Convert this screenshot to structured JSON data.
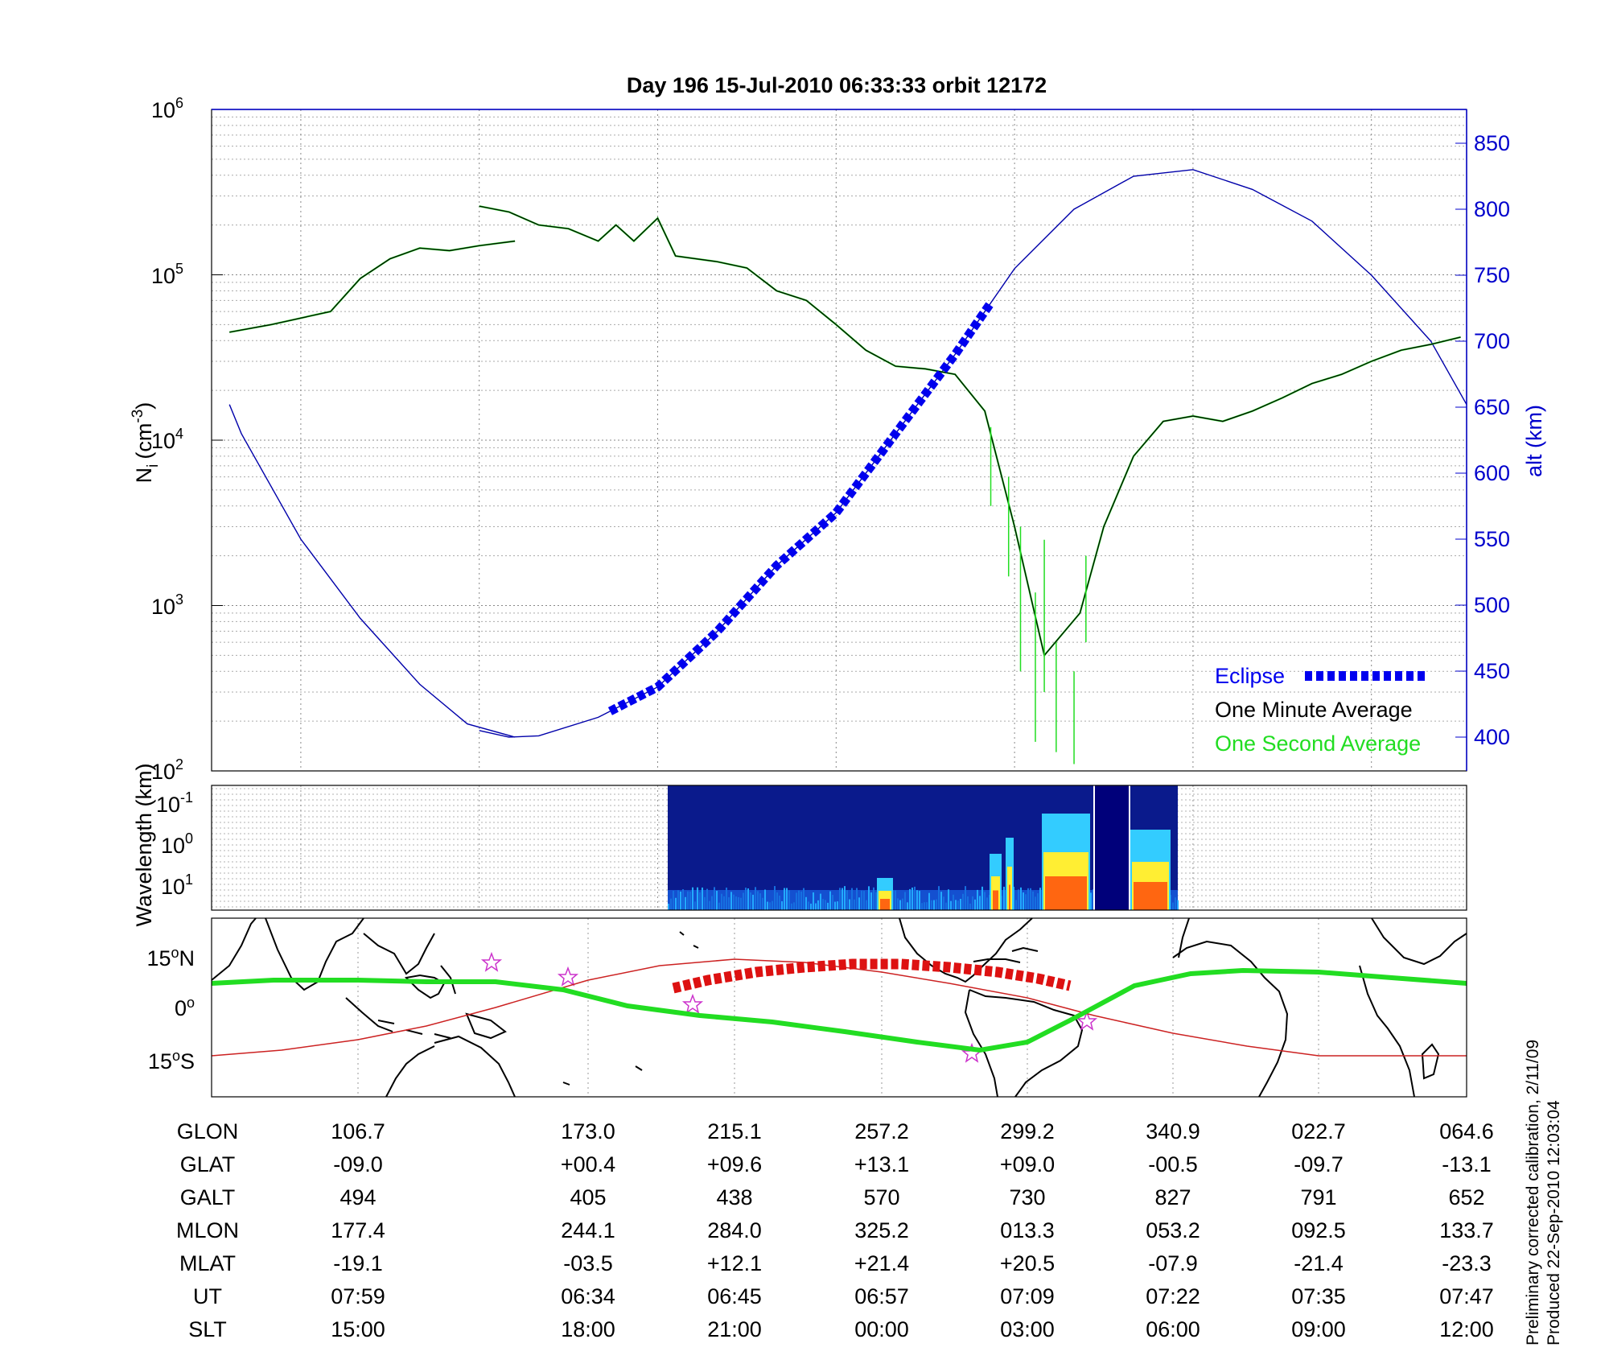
{
  "title": "Day 196  15-Jul-2010 06:33:33   orbit 12172",
  "top_panel": {
    "left_axis_label_main": "N",
    "left_axis_label_sub": "i",
    "left_axis_label_unit": "(cm",
    "left_axis_label_exp": "-3",
    "left_axis_label_close": ")",
    "right_axis_label": "alt (km)",
    "left_ticks": [
      {
        "base": "10",
        "exp": "6",
        "value": 1000000
      },
      {
        "base": "10",
        "exp": "5",
        "value": 100000
      },
      {
        "base": "10",
        "exp": "4",
        "value": 10000
      },
      {
        "base": "10",
        "exp": "3",
        "value": 1000
      },
      {
        "base": "10",
        "exp": "2",
        "value": 100
      }
    ],
    "right_ticks": [
      "850",
      "800",
      "750",
      "700",
      "650",
      "600",
      "550",
      "500",
      "450",
      "400"
    ],
    "legend": {
      "eclipse": "Eclipse",
      "one_minute": "One Minute Average",
      "one_second": "One Second Average"
    }
  },
  "mid_panel": {
    "axis_label": "Wavelength (km)",
    "ticks": [
      {
        "base": "10",
        "exp": "-1"
      },
      {
        "base": "10",
        "exp": "0"
      },
      {
        "base": "10",
        "exp": "1"
      }
    ]
  },
  "map_panel": {
    "ticks": [
      {
        "num": "15",
        "deg": "o",
        "hemi": "N"
      },
      {
        "num": "0",
        "deg": "o",
        "hemi": ""
      },
      {
        "num": "15",
        "deg": "o",
        "hemi": "S"
      }
    ]
  },
  "table": {
    "rows": [
      {
        "label": "GLON",
        "values": [
          "106.7",
          "173.0",
          "215.1",
          "257.2",
          "299.2",
          "340.9",
          "022.7",
          "064.6"
        ]
      },
      {
        "label": "GLAT",
        "values": [
          "-09.0",
          "+00.4",
          "+09.6",
          "+13.1",
          "+09.0",
          "-00.5",
          "-09.7",
          "-13.1"
        ]
      },
      {
        "label": "GALT",
        "values": [
          "494",
          "405",
          "438",
          "570",
          "730",
          "827",
          "791",
          "652"
        ]
      },
      {
        "label": "MLON",
        "values": [
          "177.4",
          "244.1",
          "284.0",
          "325.2",
          "013.3",
          "053.2",
          "092.5",
          "133.7"
        ]
      },
      {
        "label": "MLAT",
        "values": [
          "-19.1",
          "-03.5",
          "+12.1",
          "+21.4",
          "+20.5",
          "-07.9",
          "-21.4",
          "-23.3"
        ]
      },
      {
        "label": "UT",
        "values": [
          "07:59",
          "06:34",
          "06:45",
          "06:57",
          "07:09",
          "07:22",
          "07:35",
          "07:47"
        ]
      },
      {
        "label": "SLT",
        "values": [
          "15:00",
          "18:00",
          "21:00",
          "00:00",
          "03:00",
          "06:00",
          "09:00",
          "12:00"
        ]
      }
    ]
  },
  "notes": {
    "line1": "Preliminary corrected calibration, 2/11/09",
    "line2": "Produced 22-Sep-2010 12:03:04"
  },
  "chart_data": {
    "type": "line",
    "title": "Day 196  15-Jul-2010 06:33:33   orbit 12172",
    "x": [
      "15:00",
      "18:00",
      "21:00",
      "00:00",
      "03:00",
      "06:00",
      "09:00",
      "12:00"
    ],
    "xlabel": "SLT",
    "ylabel": "Ni (cm-3)",
    "yscale": "log",
    "ylim": [
      100,
      1000000
    ],
    "y2label": "alt (km)",
    "y2lim": [
      380,
      880
    ],
    "grid": true,
    "legend_position": "bottom-right",
    "series": [
      {
        "name": "One Minute Average",
        "color": "#000000",
        "axis": "left",
        "segments": [
          [
            [
              13.8,
              45000
            ],
            [
              14.5,
              50000
            ],
            [
              15.5,
              60000
            ],
            [
              16.0,
              95000
            ],
            [
              16.5,
              125000
            ],
            [
              17.0,
              145000
            ],
            [
              17.5,
              140000
            ],
            [
              18.0,
              150000
            ],
            [
              18.6,
              160000
            ]
          ],
          [
            [
              18.0,
              260000
            ],
            [
              18.5,
              240000
            ],
            [
              19.0,
              200000
            ],
            [
              19.5,
              190000
            ],
            [
              20.0,
              160000
            ],
            [
              20.3,
              200000
            ],
            [
              20.6,
              160000
            ],
            [
              21.0,
              220000
            ],
            [
              21.3,
              130000
            ],
            [
              22.0,
              120000
            ],
            [
              22.5,
              110000
            ],
            [
              23.0,
              80000
            ],
            [
              23.5,
              70000
            ],
            [
              24.0,
              50000
            ],
            [
              24.5,
              35000
            ],
            [
              25.0,
              28000
            ],
            [
              25.5,
              27000
            ],
            [
              26.0,
              25000
            ],
            [
              26.5,
              15000
            ],
            [
              27.0,
              3000
            ],
            [
              27.5,
              500
            ],
            [
              28.1,
              900
            ],
            [
              28.5,
              3000
            ],
            [
              29.0,
              8000
            ],
            [
              29.5,
              13000
            ],
            [
              30.0,
              14000
            ],
            [
              30.5,
              13000
            ],
            [
              31.0,
              15000
            ],
            [
              31.5,
              18000
            ],
            [
              32.0,
              22000
            ],
            [
              32.5,
              25000
            ],
            [
              33.0,
              30000
            ],
            [
              33.5,
              35000
            ],
            [
              34.0,
              38000
            ],
            [
              34.5,
              42000
            ]
          ]
        ]
      },
      {
        "name": "Altitude",
        "color": "#0000aa",
        "axis": "right",
        "segments": [
          [
            [
              13.8,
              652
            ],
            [
              14.0,
              630
            ],
            [
              15.0,
              550
            ],
            [
              16.0,
              490
            ],
            [
              17.0,
              440
            ],
            [
              17.8,
              410
            ],
            [
              18.6,
              400
            ]
          ],
          [
            [
              18.0,
              405
            ],
            [
              18.5,
              400
            ],
            [
              19.0,
              401
            ],
            [
              20.0,
              415
            ],
            [
              21.0,
              438
            ],
            [
              22.0,
              480
            ],
            [
              23.0,
              530
            ],
            [
              24.0,
              570
            ],
            [
              25.0,
              630
            ],
            [
              26.0,
              690
            ],
            [
              27.0,
              755
            ],
            [
              28.0,
              800
            ],
            [
              29.0,
              825
            ],
            [
              30.0,
              830
            ],
            [
              31.0,
              815
            ],
            [
              32.0,
              791
            ],
            [
              33.0,
              750
            ],
            [
              34.0,
              700
            ],
            [
              34.6,
              652
            ]
          ]
        ]
      },
      {
        "name": "Eclipse",
        "color": "#0000ee",
        "axis": "right",
        "range": [
          20.2,
          26.6
        ]
      }
    ]
  }
}
